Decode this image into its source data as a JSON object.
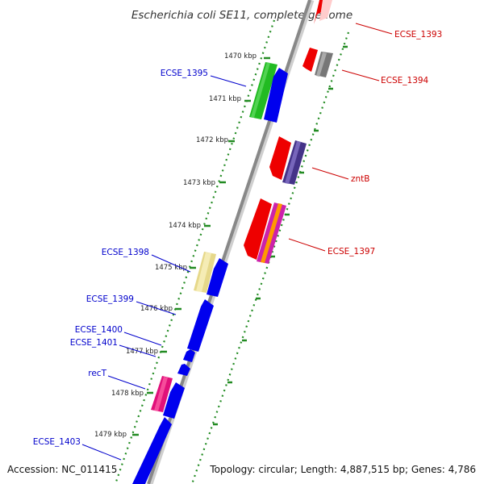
{
  "title": "Escherichia coli SE11, complete genome",
  "footer": {
    "accession": "Accession: NC_011415",
    "topology": "Topology: circular; Length: 4,887,515 bp; Genes: 4,786"
  },
  "ticks": [
    "1470 kbp",
    "1471 kbp",
    "1472 kbp",
    "1473 kbp",
    "1474 kbp",
    "1475 kbp",
    "1476 kbp",
    "1477 kbp",
    "1478 kbp",
    "1479 kbp"
  ],
  "gene_labels_left": [
    "ECSE_1395",
    "ECSE_1398",
    "ECSE_1399",
    "ECSE_1400",
    "ECSE_1401",
    "recT",
    "ECSE_1403"
  ],
  "gene_labels_right": [
    "ECSE_1393",
    "ECSE_1394",
    "zntB",
    "ECSE_1397"
  ],
  "colors": {
    "left_label": "#0000cc",
    "right_label": "#cc0000",
    "tick_dots": "#228b22",
    "backbone": "#888888"
  }
}
